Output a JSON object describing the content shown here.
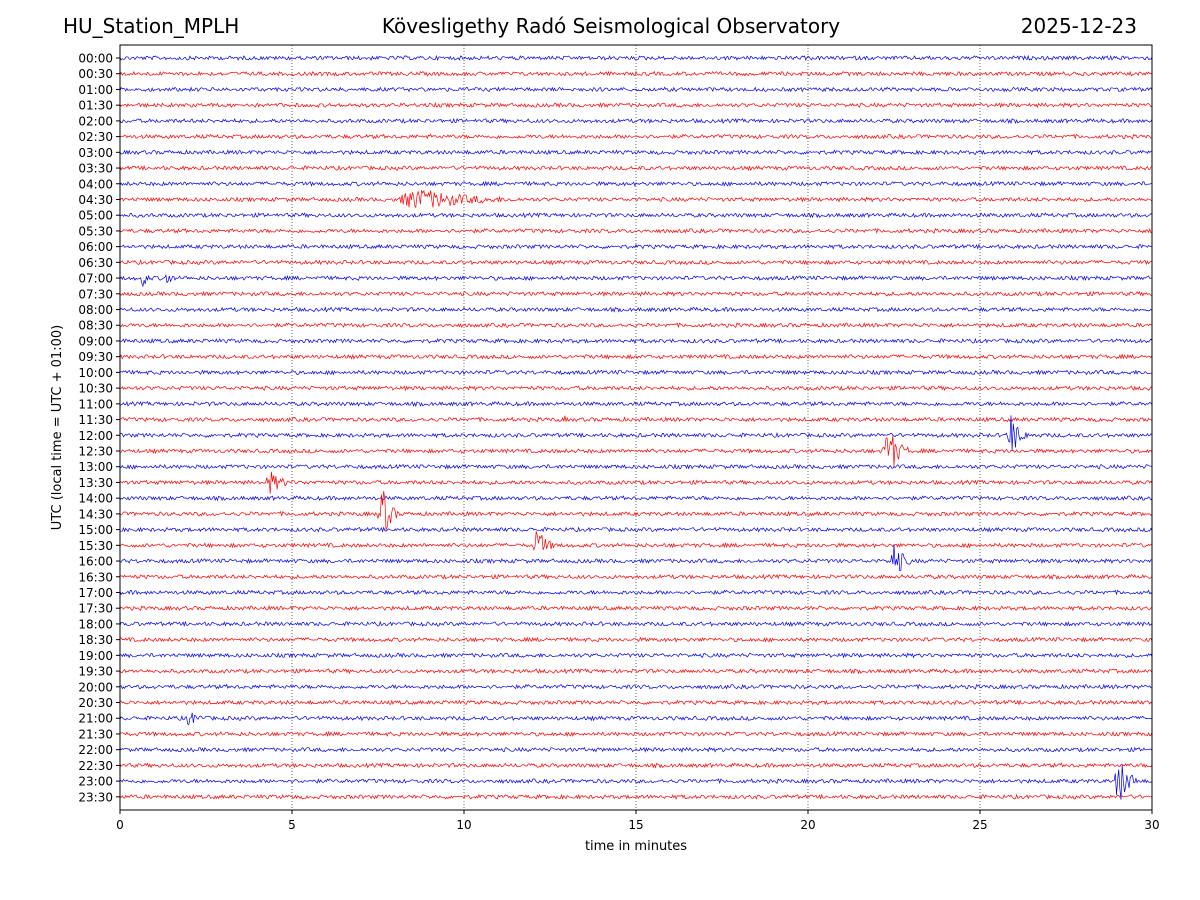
{
  "header": {
    "station": "HU_Station_MPLH",
    "title": "Kövesligethy Radó Seismological Observatory",
    "date": "2025-12-23"
  },
  "chart_data": {
    "type": "line",
    "title": "Kövesligethy Radó Seismological Observatory",
    "xlabel": "time in minutes",
    "ylabel": "UTC (local time = UTC + 01:00)",
    "xlim": [
      0,
      30
    ],
    "x_ticks": [
      0,
      5,
      10,
      15,
      20,
      25,
      30
    ],
    "grid": "vertical dotted at x ticks",
    "row_labels": [
      "00:00",
      "00:30",
      "01:00",
      "01:30",
      "02:00",
      "02:30",
      "03:00",
      "03:30",
      "04:00",
      "04:30",
      "05:00",
      "05:30",
      "06:00",
      "06:30",
      "07:00",
      "07:30",
      "08:00",
      "08:30",
      "09:00",
      "09:30",
      "10:00",
      "10:30",
      "11:00",
      "11:30",
      "12:00",
      "12:30",
      "13:00",
      "13:30",
      "14:00",
      "14:30",
      "15:00",
      "15:30",
      "16:00",
      "16:30",
      "17:00",
      "17:30",
      "18:00",
      "18:30",
      "19:00",
      "19:30",
      "20:00",
      "20:30",
      "21:00",
      "21:30",
      "22:00",
      "22:30",
      "23:00",
      "23:30"
    ],
    "series_colors": [
      "#0000ee",
      "#ff0000"
    ],
    "events": [
      {
        "row": "04:30",
        "start_min": 7.9,
        "end_min": 11.5,
        "amplitude": 0.75
      },
      {
        "row": "07:00",
        "start_min": 0.6,
        "end_min": 0.9,
        "amplitude": 0.7
      },
      {
        "row": "07:00",
        "start_min": 1.3,
        "end_min": 1.6,
        "amplitude": 0.65
      },
      {
        "row": "11:30",
        "start_min": 12.9,
        "end_min": 13.0,
        "amplitude": 0.4
      },
      {
        "row": "12:00",
        "start_min": 25.8,
        "end_min": 26.3,
        "amplitude": 1.6
      },
      {
        "row": "12:30",
        "start_min": 22.2,
        "end_min": 22.8,
        "amplitude": 1.9
      },
      {
        "row": "13:30",
        "start_min": 4.2,
        "end_min": 5.0,
        "amplitude": 0.8
      },
      {
        "row": "14:30",
        "start_min": 7.5,
        "end_min": 8.0,
        "amplitude": 2.0
      },
      {
        "row": "15:30",
        "start_min": 12.0,
        "end_min": 12.6,
        "amplitude": 1.2
      },
      {
        "row": "16:00",
        "start_min": 22.4,
        "end_min": 22.9,
        "amplitude": 1.5
      },
      {
        "row": "21:00",
        "start_min": 1.8,
        "end_min": 2.7,
        "amplitude": 0.5
      },
      {
        "row": "23:00",
        "start_min": 28.9,
        "end_min": 29.5,
        "amplitude": 1.8
      }
    ]
  }
}
